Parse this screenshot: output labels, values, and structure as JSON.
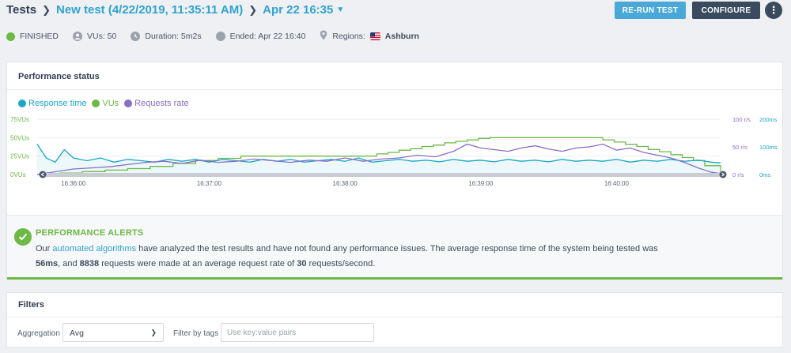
{
  "breadcrumb": {
    "root": "Tests",
    "test_name": "New test (4/22/2019, 11:35:11 AM)",
    "run": "Apr 22 16:35"
  },
  "actions": {
    "rerun_label": "RE-RUN TEST",
    "configure_label": "CONFIGURE"
  },
  "status": {
    "state": "FINISHED",
    "vus": "VUs: 50",
    "duration": "Duration: 5m2s",
    "ended": "Ended: Apr 22 16:40",
    "regions_label": "Regions:",
    "region": "Ashburn"
  },
  "performance": {
    "title": "Performance status",
    "legend": [
      {
        "label": "Response time",
        "color": "#1aa7c7"
      },
      {
        "label": "VUs",
        "color": "#6cb946"
      },
      {
        "label": "Requests rate",
        "color": "#8a6cc8"
      }
    ]
  },
  "chart_data": {
    "type": "line",
    "x_ticks": [
      "16:36:00",
      "16:37:00",
      "16:38:00",
      "16:39:00",
      "16:40:00"
    ],
    "y_left_ticks": [
      "75VUs",
      "50VUs",
      "25VUs",
      "0VUs"
    ],
    "y_right1_ticks": [
      "100 r/s",
      "50 r/s",
      "0 r/s"
    ],
    "y_right2_ticks": [
      "200ms",
      "100ms",
      "0ms"
    ],
    "ylim_vus": [
      0,
      75
    ],
    "ylim_rate": [
      0,
      100
    ],
    "ylim_ms": [
      0,
      200
    ],
    "x_range_s": [
      0,
      302
    ],
    "series": [
      {
        "name": "VUs",
        "color": "#6cb946",
        "points": [
          [
            0,
            0
          ],
          [
            10,
            2
          ],
          [
            20,
            4
          ],
          [
            30,
            6
          ],
          [
            40,
            8
          ],
          [
            50,
            11
          ],
          [
            60,
            15
          ],
          [
            70,
            19
          ],
          [
            80,
            22
          ],
          [
            90,
            25
          ],
          [
            100,
            25
          ],
          [
            110,
            25
          ],
          [
            120,
            25
          ],
          [
            130,
            25
          ],
          [
            140,
            25
          ],
          [
            150,
            28
          ],
          [
            155,
            30
          ],
          [
            160,
            33
          ],
          [
            165,
            35
          ],
          [
            170,
            38
          ],
          [
            175,
            40
          ],
          [
            180,
            43
          ],
          [
            185,
            45
          ],
          [
            190,
            47
          ],
          [
            195,
            49
          ],
          [
            200,
            50
          ],
          [
            245,
            50
          ],
          [
            250,
            47
          ],
          [
            255,
            44
          ],
          [
            260,
            41
          ],
          [
            265,
            38
          ],
          [
            270,
            34
          ],
          [
            275,
            31
          ],
          [
            280,
            27
          ],
          [
            285,
            23
          ],
          [
            290,
            19
          ],
          [
            295,
            12
          ],
          [
            302,
            4
          ]
        ]
      },
      {
        "name": "Response time",
        "color": "#1aa7c7",
        "points": [
          [
            0,
            110
          ],
          [
            4,
            60
          ],
          [
            8,
            45
          ],
          [
            12,
            90
          ],
          [
            16,
            60
          ],
          [
            22,
            50
          ],
          [
            28,
            60
          ],
          [
            34,
            45
          ],
          [
            40,
            55
          ],
          [
            46,
            50
          ],
          [
            52,
            45
          ],
          [
            58,
            55
          ],
          [
            64,
            48
          ],
          [
            70,
            55
          ],
          [
            76,
            45
          ],
          [
            82,
            55
          ],
          [
            88,
            50
          ],
          [
            94,
            45
          ],
          [
            100,
            55
          ],
          [
            106,
            48
          ],
          [
            112,
            55
          ],
          [
            118,
            45
          ],
          [
            124,
            50
          ],
          [
            130,
            55
          ],
          [
            136,
            48
          ],
          [
            142,
            60
          ],
          [
            148,
            45
          ],
          [
            154,
            50
          ],
          [
            160,
            55
          ],
          [
            166,
            48
          ],
          [
            172,
            52
          ],
          [
            178,
            46
          ],
          [
            184,
            55
          ],
          [
            190,
            48
          ],
          [
            196,
            52
          ],
          [
            202,
            46
          ],
          [
            208,
            55
          ],
          [
            214,
            48
          ],
          [
            220,
            52
          ],
          [
            226,
            46
          ],
          [
            232,
            55
          ],
          [
            238,
            48
          ],
          [
            244,
            52
          ],
          [
            250,
            48
          ],
          [
            256,
            55
          ],
          [
            262,
            45
          ],
          [
            268,
            52
          ],
          [
            274,
            48
          ],
          [
            280,
            55
          ],
          [
            286,
            48
          ],
          [
            292,
            52
          ],
          [
            298,
            45
          ],
          [
            302,
            42
          ]
        ]
      },
      {
        "name": "Requests rate",
        "color": "#8a6cc8",
        "points": [
          [
            0,
            0
          ],
          [
            8,
            5
          ],
          [
            16,
            10
          ],
          [
            24,
            12
          ],
          [
            32,
            14
          ],
          [
            40,
            18
          ],
          [
            48,
            22
          ],
          [
            56,
            24
          ],
          [
            64,
            20
          ],
          [
            72,
            26
          ],
          [
            80,
            22
          ],
          [
            88,
            24
          ],
          [
            96,
            28
          ],
          [
            104,
            25
          ],
          [
            112,
            22
          ],
          [
            120,
            26
          ],
          [
            128,
            24
          ],
          [
            136,
            30
          ],
          [
            144,
            24
          ],
          [
            152,
            28
          ],
          [
            160,
            30
          ],
          [
            168,
            35
          ],
          [
            176,
            32
          ],
          [
            184,
            42
          ],
          [
            190,
            55
          ],
          [
            196,
            48
          ],
          [
            202,
            45
          ],
          [
            208,
            42
          ],
          [
            214,
            48
          ],
          [
            220,
            52
          ],
          [
            226,
            46
          ],
          [
            232,
            42
          ],
          [
            238,
            48
          ],
          [
            244,
            50
          ],
          [
            250,
            55
          ],
          [
            256,
            44
          ],
          [
            262,
            48
          ],
          [
            268,
            40
          ],
          [
            274,
            35
          ],
          [
            280,
            30
          ],
          [
            286,
            22
          ],
          [
            292,
            12
          ],
          [
            298,
            4
          ],
          [
            302,
            2
          ]
        ]
      }
    ]
  },
  "alerts": {
    "title": "PERFORMANCE ALERTS",
    "line1_prefix": "Our ",
    "line1_link": "automated algorithms",
    "line1_suffix": " have analyzed the test results and have not found any performance issues. The average response time of the system being tested was",
    "avg_response": "56ms",
    "line2_a": ", and ",
    "request_count": "8838",
    "line2_b": " requests were made at an average request rate of ",
    "avg_rate": "30",
    "line2_c": " requests/second."
  },
  "filters": {
    "title": "Filters",
    "aggregation_label": "Aggregation",
    "aggregation_value": "Avg",
    "tags_label": "Filter by tags",
    "tags_placeholder": "Use key:value pairs"
  }
}
